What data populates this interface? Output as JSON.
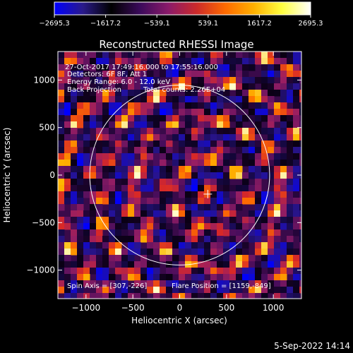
{
  "colorbar": {
    "ticks": [
      "-2695.3",
      "-1617.2",
      "-539.1",
      "539.1",
      "1617.2",
      "2695.3"
    ],
    "min": -2695.3,
    "max": 2695.3,
    "colors": [
      "#0000ff",
      "#2a1a8a",
      "#000000",
      "#3a0a5a",
      "#8a1a6a",
      "#cc2a2a",
      "#ff6a00",
      "#ffb000",
      "#ffff40",
      "#ffffff"
    ]
  },
  "chart_data": {
    "type": "heatmap",
    "title": "Reconstructed RHESSI Image",
    "xlabel": "Heliocentric X (arcsec)",
    "ylabel": "Heliocentric Y (arcsec)",
    "xlim": [
      -1300,
      1300
    ],
    "ylim": [
      -1300,
      1300
    ],
    "xticks": [
      -1000,
      -500,
      0,
      500,
      1000
    ],
    "yticks": [
      -1000,
      -500,
      0,
      500,
      1000
    ],
    "xtick_labels": [
      "−1000",
      "−500",
      "0",
      "500",
      "1000"
    ],
    "ytick_labels": [
      "−1000",
      "−500",
      "0",
      "500",
      "1000"
    ],
    "solar_disk_radius": 960,
    "flare_marker": [
      300,
      -200
    ],
    "annotations": [
      "27-Oct-2017 17:49:16.000 to 17:55:16.000",
      "Detectors: 6F 8F, Att 1",
      "Energy Range: 6.0 - 12.0 keV",
      "Back Projection",
      "Total counts: 2.26E+04"
    ],
    "footer_left": "Spin Axis = [307,-226]",
    "footer_right": "Flare Position = [1159,-849]"
  },
  "timestamp": "5-Sep-2022 14:14"
}
